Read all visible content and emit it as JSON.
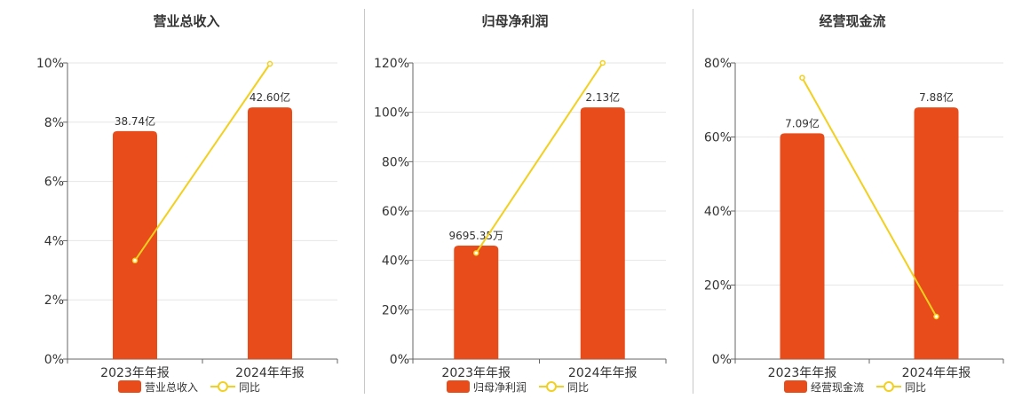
{
  "chart_data": [
    {
      "type": "bar",
      "title": "营业总收入",
      "categories": [
        "2023年年报",
        "2024年年报"
      ],
      "bar_labels": [
        "38.74亿",
        "42.60亿"
      ],
      "bar_values": [
        38.74,
        42.6
      ],
      "bar_heights_pct": [
        7.7,
        8.5
      ],
      "line_values_pct": [
        3.33,
        9.97
      ],
      "y_ticks": [
        "0%",
        "2%",
        "4%",
        "6%",
        "8%",
        "10%"
      ],
      "ylim": [
        0,
        10
      ],
      "legend": [
        "营业总收入",
        "同比"
      ],
      "colors": {
        "bar": "#e84c1a",
        "line": "#f2d01f"
      }
    },
    {
      "type": "bar",
      "title": "归母净利润",
      "categories": [
        "2023年年报",
        "2024年年报"
      ],
      "bar_labels": [
        "9695.35万",
        "2.13亿"
      ],
      "bar_values": [
        9695.35,
        21300
      ],
      "bar_heights_pct": [
        46,
        102
      ],
      "line_values_pct": [
        43,
        120
      ],
      "y_ticks": [
        "0%",
        "20%",
        "40%",
        "60%",
        "80%",
        "100%",
        "120%"
      ],
      "ylim": [
        0,
        120
      ],
      "legend": [
        "归母净利润",
        "同比"
      ],
      "colors": {
        "bar": "#e84c1a",
        "line": "#f2d01f"
      }
    },
    {
      "type": "bar",
      "title": "经营现金流",
      "categories": [
        "2023年年报",
        "2024年年报"
      ],
      "bar_labels": [
        "7.09亿",
        "7.88亿"
      ],
      "bar_values": [
        7.09,
        7.88
      ],
      "bar_heights_pct": [
        61,
        68
      ],
      "line_values_pct": [
        76,
        11.5
      ],
      "y_ticks": [
        "0%",
        "20%",
        "40%",
        "60%",
        "80%"
      ],
      "ylim": [
        0,
        80
      ],
      "legend": [
        "经营现金流",
        "同比"
      ],
      "colors": {
        "bar": "#e84c1a",
        "line": "#f2d01f"
      }
    }
  ]
}
